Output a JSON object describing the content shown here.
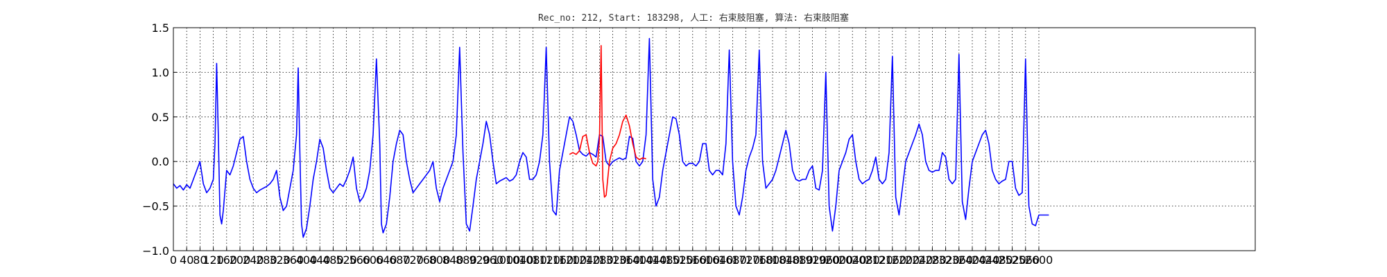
{
  "chart_data": {
    "type": "line",
    "title": "Rec_no: 212, Start: 183298, 人工: 右束肢阻塞, 算法: 右束肢阻塞",
    "xlabel": "",
    "ylabel": "",
    "xlim": [
      0,
      3250
    ],
    "ylim": [
      -1.0,
      1.5
    ],
    "grid": true,
    "y_ticks": [
      -1.0,
      -0.5,
      0.0,
      0.5,
      1.0,
      1.5
    ],
    "y_tick_labels": [
      "−1.0",
      "−0.5",
      "0.0",
      "0.5",
      "1.0",
      "1.5"
    ],
    "x_ticks": [
      0,
      40,
      80,
      120,
      160,
      200,
      240,
      280,
      320,
      360,
      400,
      440,
      480,
      520,
      560,
      600,
      640,
      680,
      720,
      760,
      800,
      840,
      880,
      920,
      960,
      1000,
      1040,
      1080,
      1120,
      1160,
      1200,
      1240,
      1280,
      1320,
      1360,
      1400,
      1440,
      1480,
      1520,
      1560,
      1600,
      1640,
      1680,
      1720,
      1760,
      1800,
      1840,
      1880,
      1920,
      1960,
      2000,
      2040,
      2080,
      2120,
      2160,
      2200,
      2240,
      2280,
      2320,
      2360,
      2400,
      2440,
      2480,
      2520,
      2560,
      2600
    ],
    "x_tick_labels": [
      "0",
      "40",
      "80",
      "120",
      "160",
      "200",
      "240",
      "280",
      "320",
      "360",
      "400",
      "440",
      "480",
      "520",
      "560",
      "600",
      "640",
      "680",
      "720",
      "760",
      "800",
      "840",
      "880",
      "920",
      "960",
      "1000",
      "1040",
      "1080",
      "1120",
      "1160",
      "1200",
      "1240",
      "1280",
      "1320",
      "1360",
      "1400",
      "1440",
      "1480",
      "1520",
      "1560",
      "1600",
      "1640",
      "1680",
      "1720",
      "1760",
      "1800",
      "1840",
      "1880",
      "1920",
      "1960",
      "2000",
      "2040",
      "2080",
      "2120",
      "2160",
      "2200",
      "2240",
      "2280",
      "2320",
      "2360",
      "2400",
      "2440",
      "2480",
      "2520",
      "2560",
      "2600"
    ],
    "series": [
      {
        "color": "#0000ff",
        "x": [
          0,
          10,
          20,
          30,
          40,
          50,
          60,
          70,
          80,
          90,
          100,
          110,
          120,
          125,
          130,
          135,
          140,
          145,
          150,
          160,
          170,
          180,
          190,
          200,
          210,
          220,
          230,
          240,
          250,
          260,
          270,
          280,
          290,
          300,
          310,
          320,
          330,
          340,
          350,
          360,
          370,
          375,
          380,
          385,
          390,
          395,
          400,
          410,
          420,
          430,
          440,
          450,
          460,
          470,
          480,
          490,
          500,
          510,
          520,
          530,
          540,
          550,
          560,
          570,
          580,
          590,
          600,
          610,
          620,
          625,
          630,
          635,
          640,
          650,
          660,
          670,
          680,
          690,
          700,
          710,
          720,
          730,
          740,
          750,
          760,
          770,
          780,
          790,
          800,
          810,
          820,
          830,
          840,
          850,
          860,
          870,
          880,
          890,
          900,
          910,
          920,
          930,
          940,
          950,
          960,
          970,
          980,
          990,
          1000,
          1010,
          1020,
          1030,
          1040,
          1050,
          1060,
          1070,
          1080,
          1090,
          1100,
          1110,
          1120,
          1130,
          1140,
          1150,
          1160,
          1170,
          1180,
          1190,
          1200,
          1210,
          1220,
          1230,
          1240,
          1250,
          1260,
          1270,
          1280,
          1290,
          1300,
          1310,
          1320,
          1330,
          1340,
          1350,
          1360,
          1370,
          1380,
          1390,
          1400,
          1410,
          1420,
          1430,
          1440,
          1450,
          1460,
          1470,
          1480,
          1490,
          1500,
          1510,
          1520,
          1530,
          1540,
          1550,
          1560,
          1570,
          1580,
          1590,
          1600,
          1610,
          1620,
          1630,
          1640,
          1650,
          1660,
          1670,
          1680,
          1690,
          1700,
          1710,
          1720,
          1730,
          1740,
          1750
        ],
        "y": [
          -0.25,
          -0.3,
          -0.27,
          -0.32,
          -0.26,
          -0.3,
          -0.2,
          -0.1,
          0.0,
          -0.25,
          -0.35,
          -0.3,
          -0.2,
          0.2,
          1.1,
          0.3,
          -0.6,
          -0.7,
          -0.55,
          -0.1,
          -0.15,
          -0.05,
          0.1,
          0.25,
          0.28,
          0.0,
          -0.2,
          -0.3,
          -0.35,
          -0.32,
          -0.3,
          -0.28,
          -0.25,
          -0.2,
          -0.1,
          -0.4,
          -0.55,
          -0.5,
          -0.3,
          -0.1,
          0.3,
          1.05,
          0.1,
          -0.7,
          -0.85,
          -0.8,
          -0.75,
          -0.5,
          -0.2,
          0.0,
          0.25,
          0.15,
          -0.1,
          -0.3,
          -0.35,
          -0.3,
          -0.25,
          -0.28,
          -0.2,
          -0.1,
          0.05,
          -0.3,
          -0.45,
          -0.4,
          -0.3,
          -0.1,
          0.3,
          1.15,
          0.2,
          -0.7,
          -0.8,
          -0.75,
          -0.7,
          -0.4,
          0.0,
          0.2,
          0.35,
          0.3,
          0.0,
          -0.2,
          -0.35,
          -0.3,
          -0.25,
          -0.2,
          -0.15,
          -0.1,
          0.0,
          -0.3,
          -0.45,
          -0.3,
          -0.2,
          -0.1,
          0.0,
          0.3,
          1.28,
          0.1,
          -0.7,
          -0.78,
          -0.5,
          -0.2,
          0.0,
          0.2,
          0.45,
          0.3,
          0.0,
          -0.25,
          -0.22,
          -0.2,
          -0.18,
          -0.22,
          -0.2,
          -0.15,
          0.0,
          0.1,
          0.05,
          -0.2,
          -0.2,
          -0.15,
          0.0,
          0.3,
          1.28,
          0.0,
          -0.55,
          -0.6,
          -0.1,
          0.1,
          0.3,
          0.5,
          0.45,
          0.3,
          0.12,
          0.08,
          0.06,
          0.1,
          0.08,
          0.05,
          0.3,
          0.28,
          0.0,
          -0.05,
          0.0,
          0.02,
          0.04,
          0.02,
          0.04,
          0.28,
          0.26,
          0.0,
          -0.05,
          0.0,
          0.3,
          1.38,
          -0.2,
          -0.5,
          -0.4,
          -0.1,
          0.1,
          0.3,
          0.5,
          0.48,
          0.3,
          0.0,
          -0.05,
          -0.02,
          -0.02,
          -0.05,
          0.0,
          0.2,
          0.2,
          -0.1,
          -0.15,
          -0.1,
          -0.1,
          -0.15,
          0.2,
          1.25,
          0.0,
          -0.5,
          -0.6,
          -0.4,
          -0.1,
          0.05,
          0.15,
          0.3
        ],
        "name": ""
      },
      {
        "color": "#ff0000",
        "x": [
          1190,
          1200,
          1210,
          1220,
          1230,
          1240,
          1250,
          1260,
          1270,
          1275,
          1280,
          1285,
          1290,
          1295,
          1300,
          1310,
          1320,
          1330,
          1340,
          1350,
          1360,
          1370,
          1380,
          1390,
          1400,
          1410,
          1420
        ],
        "y": [
          0.08,
          0.1,
          0.08,
          0.12,
          0.28,
          0.3,
          0.1,
          -0.02,
          -0.05,
          0.0,
          0.25,
          1.3,
          -0.2,
          -0.4,
          -0.38,
          0.0,
          0.15,
          0.2,
          0.3,
          0.45,
          0.52,
          0.4,
          0.2,
          0.05,
          0.02,
          0.04,
          0.03
        ],
        "name": ""
      },
      {
        "color": "#0000ff",
        "x": [
          1750,
          1760,
          1770,
          1780,
          1790,
          1800,
          1810,
          1820,
          1830,
          1840,
          1850,
          1860,
          1870,
          1880,
          1890,
          1900,
          1910,
          1920,
          1930,
          1940,
          1950,
          1960,
          1970,
          1980,
          1990,
          2000,
          2010,
          2020,
          2030,
          2040,
          2050,
          2060,
          2070,
          2080,
          2090,
          2100,
          2110,
          2120,
          2130,
          2140,
          2150,
          2160,
          2170,
          2180,
          2190,
          2200,
          2210,
          2220,
          2230,
          2240,
          2250,
          2260,
          2270,
          2280,
          2290,
          2300,
          2310,
          2320,
          2330,
          2340,
          2350,
          2360,
          2370,
          2380,
          2390,
          2400,
          2410,
          2420,
          2430,
          2440,
          2450,
          2460,
          2470,
          2480,
          2490,
          2500,
          2510,
          2520,
          2530,
          2540,
          2550,
          2560,
          2570,
          2580,
          2590,
          2600,
          2610,
          2620,
          2630
        ],
        "y": [
          0.3,
          1.25,
          0.0,
          -0.3,
          -0.25,
          -0.2,
          -0.1,
          0.05,
          0.2,
          0.35,
          0.2,
          -0.1,
          -0.2,
          -0.22,
          -0.2,
          -0.2,
          -0.1,
          -0.05,
          -0.3,
          -0.32,
          -0.1,
          1.0,
          -0.5,
          -0.78,
          -0.5,
          -0.1,
          0.0,
          0.1,
          0.25,
          0.3,
          0.0,
          -0.2,
          -0.25,
          -0.22,
          -0.2,
          -0.1,
          0.05,
          -0.2,
          -0.25,
          -0.2,
          0.1,
          1.18,
          -0.4,
          -0.6,
          -0.3,
          0.0,
          0.1,
          0.2,
          0.3,
          0.42,
          0.3,
          0.0,
          -0.1,
          -0.12,
          -0.1,
          -0.1,
          0.1,
          0.05,
          -0.2,
          -0.25,
          -0.2,
          1.2,
          -0.45,
          -0.65,
          -0.3,
          0.0,
          0.1,
          0.2,
          0.3,
          0.35,
          0.2,
          -0.1,
          -0.2,
          -0.25,
          -0.22,
          -0.2,
          0.0,
          0.0,
          -0.3,
          -0.38,
          -0.35,
          1.15,
          -0.5,
          -0.7,
          -0.72,
          -0.6,
          -0.6,
          -0.6,
          -0.6
        ],
        "name": ""
      }
    ]
  }
}
